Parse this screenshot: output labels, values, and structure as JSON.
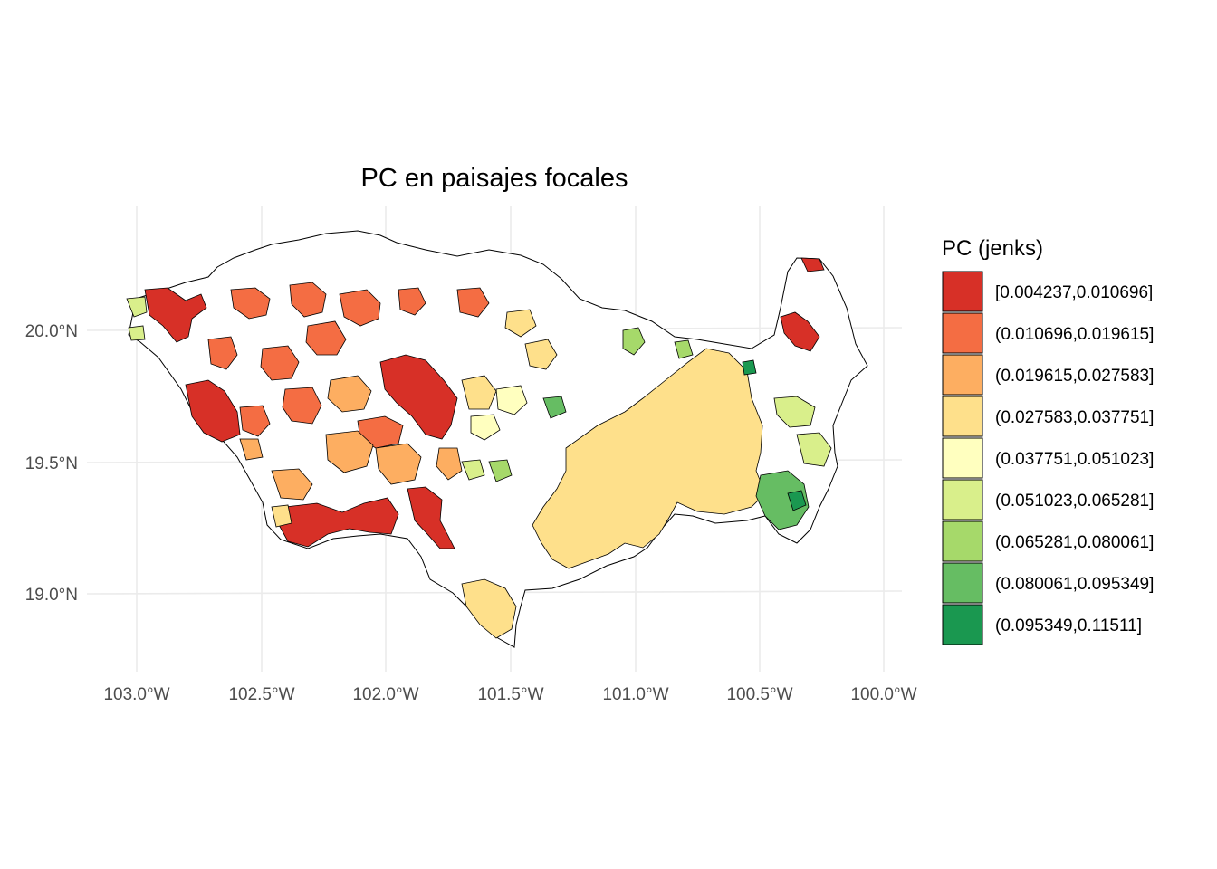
{
  "map": {
    "title": "PC en paisajes focales",
    "x_ticks": [
      "103.0°W",
      "102.5°W",
      "102.0°W",
      "101.5°W",
      "101.0°W",
      "100.5°W",
      "100.0°W"
    ],
    "y_ticks": [
      "20.0°N",
      "19.5°N",
      "19.0°N"
    ],
    "colors": [
      "#d73027",
      "#f46d43",
      "#fdae61",
      "#fee08b",
      "#ffffbf",
      "#d9ef8b",
      "#a6d96a",
      "#66bd63",
      "#1a9850"
    ],
    "legend": {
      "title": "PC (jenks)",
      "items": [
        {
          "label": "[0.004237,0.010696]",
          "color": "#d73027"
        },
        {
          "label": "(0.010696,0.019615]",
          "color": "#f46d43"
        },
        {
          "label": "(0.019615,0.027583]",
          "color": "#fdae61"
        },
        {
          "label": "(0.027583,0.037751]",
          "color": "#fee08b"
        },
        {
          "label": "(0.037751,0.051023]",
          "color": "#ffffbf"
        },
        {
          "label": "(0.051023,0.065281]",
          "color": "#d9ef8b"
        },
        {
          "label": "(0.065281,0.080061]",
          "color": "#a6d96a"
        },
        {
          "label": "(0.080061,0.095349]",
          "color": "#66bd63"
        },
        {
          "label": "(0.095349,0.11511]",
          "color": "#1a9850"
        }
      ]
    }
  }
}
